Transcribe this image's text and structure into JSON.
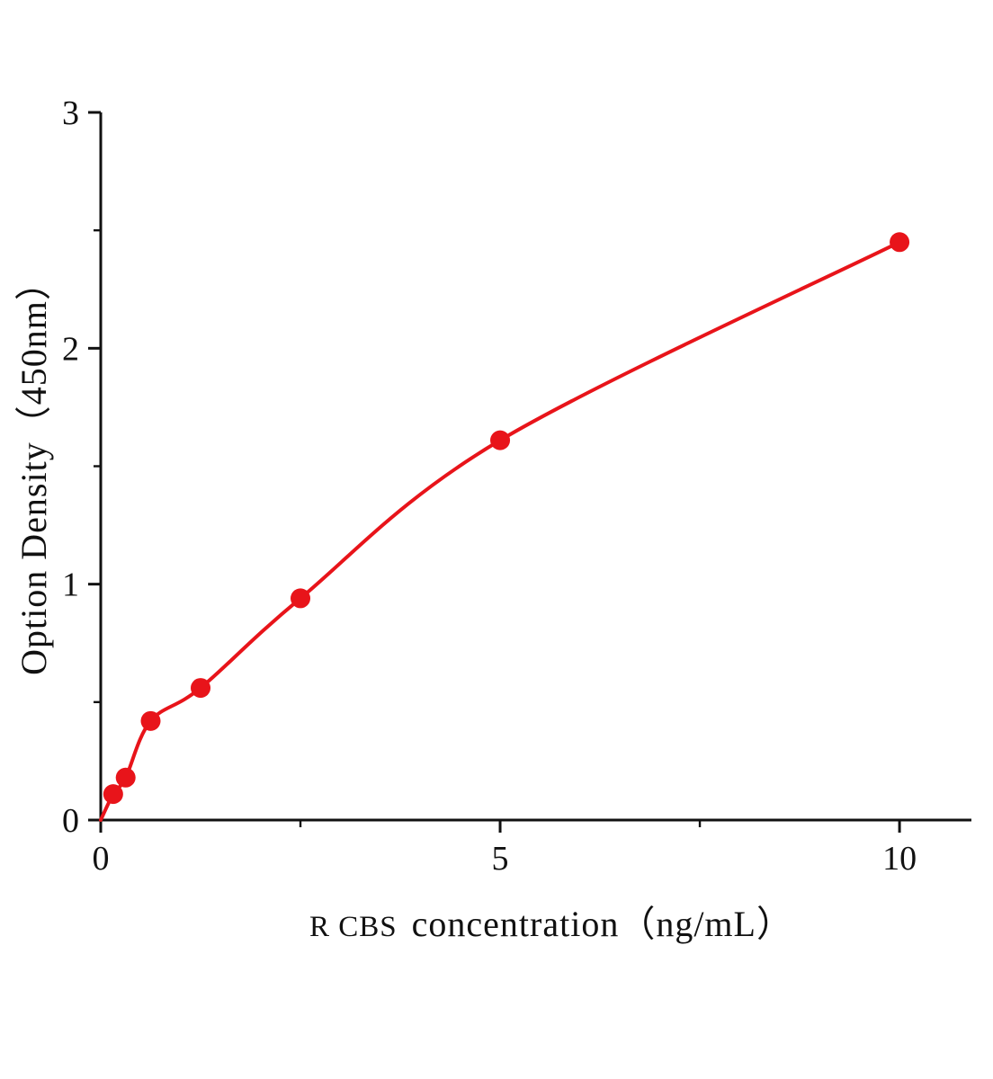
{
  "chart_data": {
    "type": "scatter",
    "title": "",
    "xlabel": "R CBS  concentration（ng/mL）",
    "xlabel_prefix": "R CBS",
    "xlabel_main": "concentration（ng/mL）",
    "ylabel": "Option Density（450nm）",
    "x": [
      0.156,
      0.312,
      0.625,
      1.25,
      2.5,
      5,
      10
    ],
    "y": [
      0.11,
      0.18,
      0.42,
      0.56,
      0.94,
      1.61,
      2.45
    ],
    "curve_start": [
      0,
      0
    ],
    "xlim": [
      0,
      10.9
    ],
    "ylim": [
      0,
      3
    ],
    "xticks": [
      0,
      5,
      10
    ],
    "yticks": [
      0,
      1,
      2,
      3
    ],
    "minor_xticks": [
      2.5,
      7.5
    ],
    "minor_yticks": [
      0.5,
      1.5,
      2.5
    ],
    "legend": [],
    "grid": false,
    "point_color": "#e8141a",
    "line_color": "#e8141a",
    "axis_color": "#111111"
  }
}
